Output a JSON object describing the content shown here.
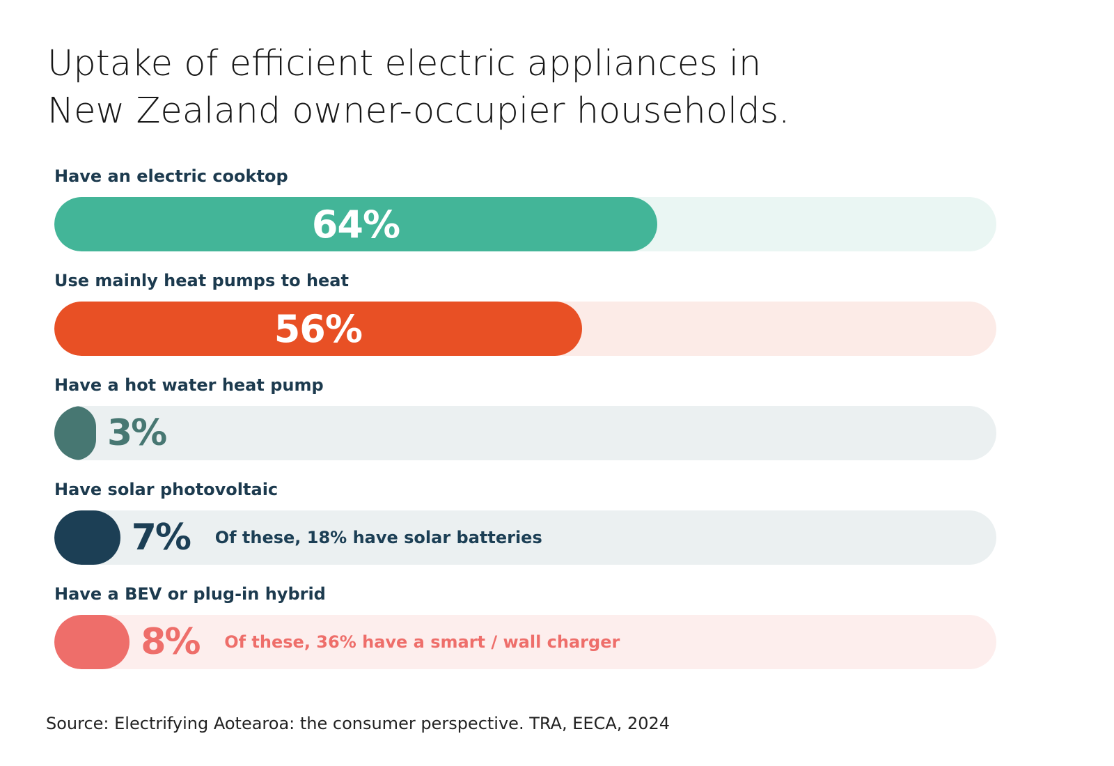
{
  "title_lines": [
    "Uptake of efficient electric appliances in",
    "New Zealand owner-occupier households."
  ],
  "source": "Source: Electrifying Aotearoa: the consumer perspective. TRA, EECA, 2024",
  "chart_data": {
    "type": "bar",
    "orientation": "horizontal",
    "title": "Uptake of efficient electric appliances in New Zealand owner-occupier households.",
    "xlim": [
      0,
      100
    ],
    "unit": "%",
    "grid": false,
    "legend": "none",
    "categories": [
      "Have an electric cooktop",
      "Use mainly heat pumps to heat",
      "Have a hot water heat pump",
      "Have solar photovoltaic",
      "Have a BEV or plug-in hybrid"
    ],
    "values": [
      64,
      56,
      3,
      7,
      8
    ],
    "value_labels": [
      "64%",
      "56%",
      "3%",
      "7%",
      "8%"
    ],
    "annotations": [
      "",
      "",
      "",
      "Of these, 18% have solar batteries",
      "Of these, 36% have a smart / wall charger"
    ],
    "colors": {
      "fill": [
        "#43b598",
        "#e85025",
        "#477772",
        "#1c3f55",
        "#ee6e6a"
      ],
      "track": [
        "#eaf6f3",
        "#fcebe7",
        "#ebf0f1",
        "#ebf0f1",
        "#fdeeed"
      ],
      "label_outside": [
        "#ffffff",
        "#ffffff",
        "#477772",
        "#1c3f55",
        "#ee6e6a"
      ]
    }
  }
}
